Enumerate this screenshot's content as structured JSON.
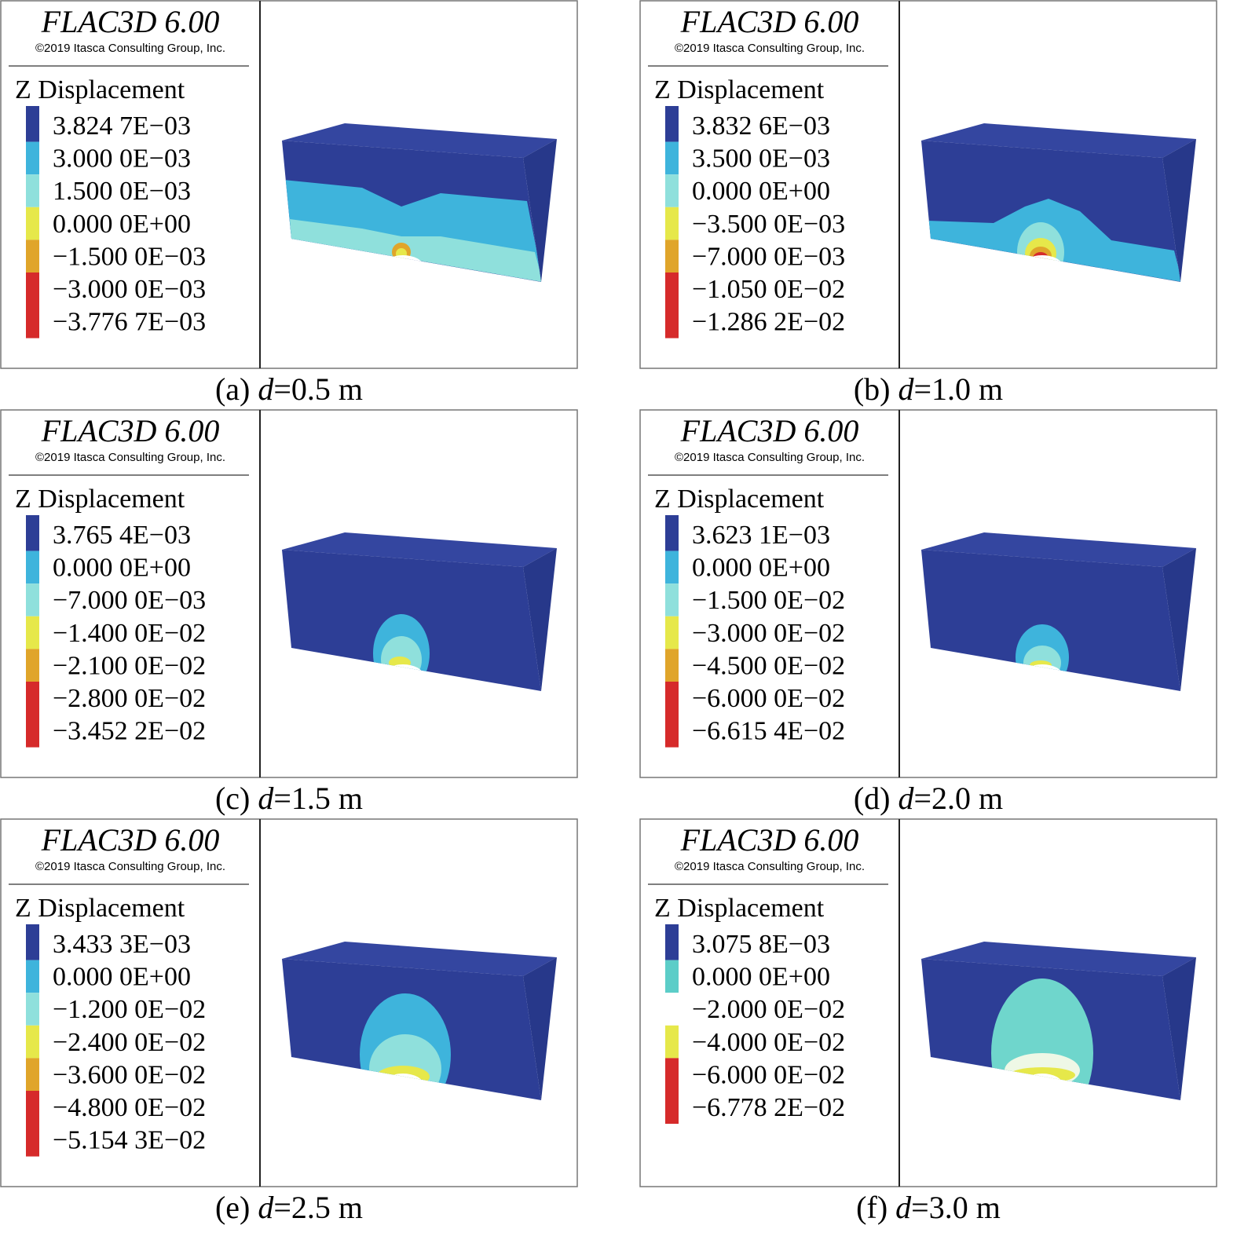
{
  "panels": [
    {
      "title": "FLAC3D 6.00",
      "copyright": "©2019 Itasca Consulting Group, Inc.",
      "legend_title": "Z Displacement",
      "legend_labels": [
        "3.824 7E−03",
        "3.000 0E−03",
        "1.500 0E−03",
        "0.000 0E+00",
        "−1.500 0E−03",
        "−3.000 0E−03",
        "−3.776 7E−03"
      ],
      "legend_colors": [
        "#2d3e96",
        "#3eb4dc",
        "#8fe0dc",
        "#e6e84a",
        "#e0a52a",
        "#d62a2a"
      ],
      "caption": {
        "label": "(a)",
        "variable": "d",
        "value": "=0.5 m"
      }
    },
    {
      "title": "FLAC3D 6.00",
      "copyright": "©2019 Itasca Consulting Group, Inc.",
      "legend_title": "Z Displacement",
      "legend_labels": [
        "3.832 6E−03",
        "3.500 0E−03",
        "0.000 0E+00",
        "−3.500 0E−03",
        "−7.000 0E−03",
        "−1.050 0E−02",
        "−1.286 2E−02"
      ],
      "legend_colors": [
        "#2d3e96",
        "#3eb4dc",
        "#8fe0dc",
        "#e6e84a",
        "#e0a52a",
        "#d62a2a"
      ],
      "caption": {
        "label": "(b)",
        "variable": "d",
        "value": "=1.0 m"
      }
    },
    {
      "title": "FLAC3D 6.00",
      "copyright": "©2019 Itasca Consulting Group, Inc.",
      "legend_title": "Z Displacement",
      "legend_labels": [
        "3.765 4E−03",
        "0.000 0E+00",
        "−7.000 0E−03",
        "−1.400 0E−02",
        "−2.100 0E−02",
        "−2.800 0E−02",
        "−3.452 2E−02"
      ],
      "legend_colors": [
        "#2d3e96",
        "#3eb4dc",
        "#8fe0dc",
        "#e6e84a",
        "#e0a52a",
        "#d62a2a"
      ],
      "caption": {
        "label": "(c)",
        "variable": "d",
        "value": "=1.5 m"
      }
    },
    {
      "title": "FLAC3D 6.00",
      "copyright": "©2019 Itasca Consulting Group, Inc.",
      "legend_title": "Z Displacement",
      "legend_labels": [
        "3.623 1E−03",
        "0.000 0E+00",
        "−1.500 0E−02",
        "−3.000 0E−02",
        "−4.500 0E−02",
        "−6.000 0E−02",
        "−6.615 4E−02"
      ],
      "legend_colors": [
        "#2d3e96",
        "#3eb4dc",
        "#8fe0dc",
        "#e6e84a",
        "#e0a52a",
        "#d62a2a"
      ],
      "caption": {
        "label": "(d)",
        "variable": "d",
        "value": "=2.0 m"
      }
    },
    {
      "title": "FLAC3D 6.00",
      "copyright": "©2019 Itasca Consulting Group, Inc.",
      "legend_title": "Z Displacement",
      "legend_labels": [
        "3.433 3E−03",
        "0.000 0E+00",
        "−1.200 0E−02",
        "−2.400 0E−02",
        "−3.600 0E−02",
        "−4.800 0E−02",
        "−5.154 3E−02"
      ],
      "legend_colors": [
        "#2d3e96",
        "#3eb4dc",
        "#8fe0dc",
        "#e6e84a",
        "#e0a52a",
        "#d62a2a"
      ],
      "caption": {
        "label": "(e)",
        "variable": "d",
        "value": "=2.5 m"
      }
    },
    {
      "title": "FLAC3D 6.00",
      "copyright": "©2019 Itasca Consulting Group, Inc.",
      "legend_title": "Z Displacement",
      "legend_labels": [
        "3.075 8E−03",
        "0.000 0E+00",
        "−2.000 0E−02",
        "−4.000 0E−02",
        "−6.000 0E−02",
        "−6.778 2E−02"
      ],
      "legend_colors": [
        "#2d3e96",
        "#5ccdc8",
        "#ffffff",
        "#e6e84a",
        "#d62a2a"
      ],
      "caption": {
        "label": "(f)",
        "variable": "d",
        "value": "=3.0 m"
      }
    }
  ]
}
